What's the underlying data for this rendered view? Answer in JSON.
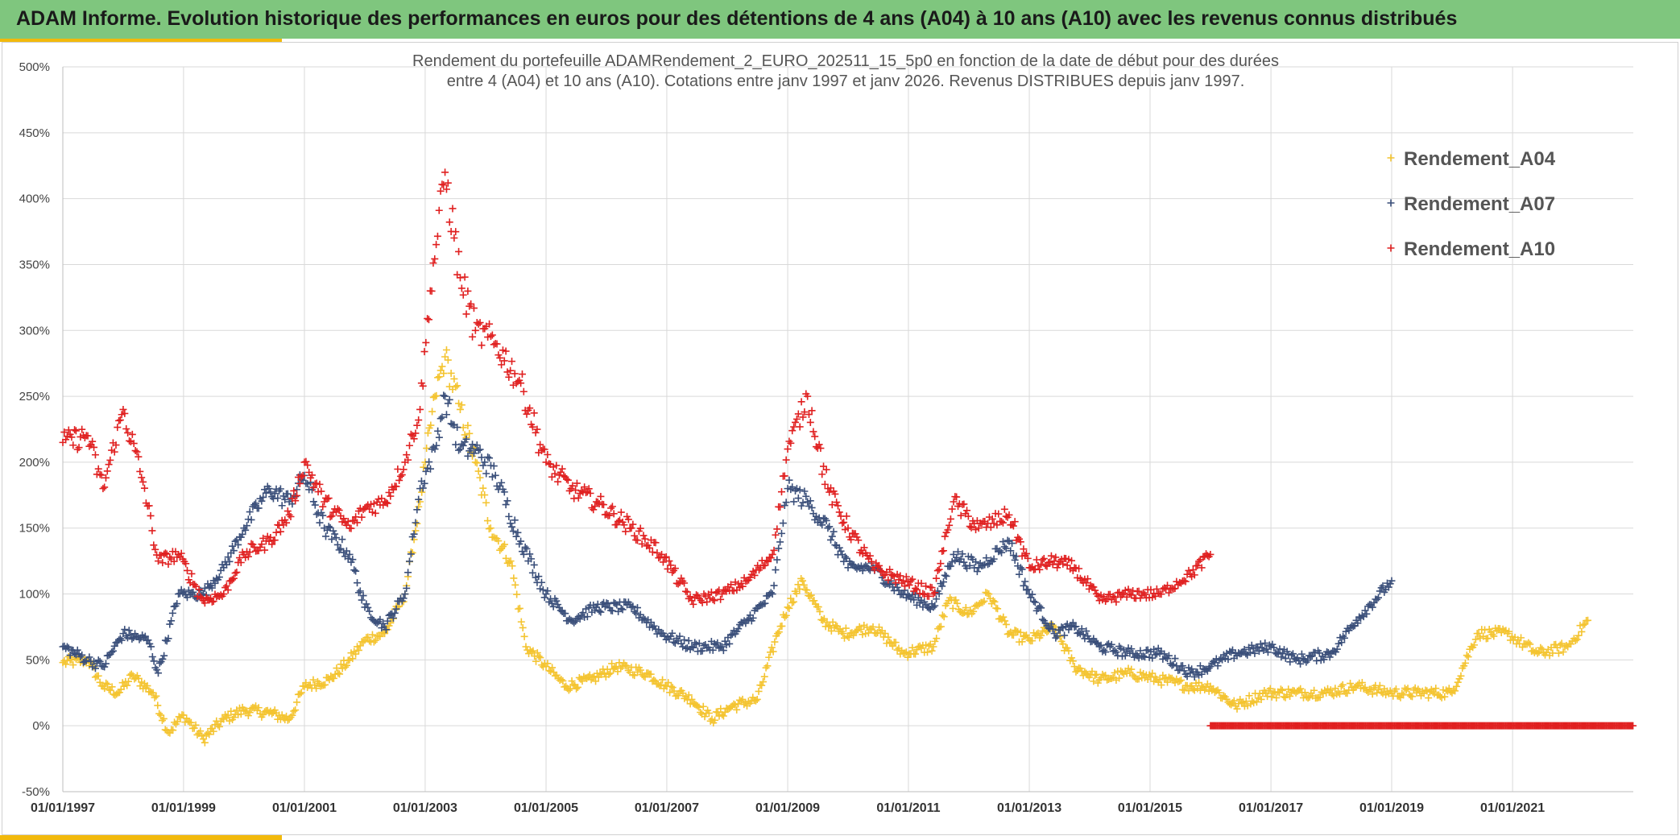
{
  "header": {
    "title": "ADAM Informe. Evolution historique des performances en euros pour des détentions de 4 ans (A04) à 10 ans (A10) avec les revenus connus distribués"
  },
  "colors": {
    "header_bg": "#7fc67e",
    "accent": "#f2b90c"
  },
  "chart_data": {
    "type": "scatter",
    "title_line1": "Rendement du portefeuille ADAMRendement_2_EURO_202511_15_5p0  en fonction de la date de début pour des durées",
    "title_line2": "entre 4 (A04) et 10 ans (A10). Cotations entre janv 1997 et janv 2026. Revenus DISTRIBUES depuis janv 1997.",
    "xlim": [
      "1997-01-01",
      "2023-01-01"
    ],
    "ylim": [
      -50,
      500
    ],
    "y_ticks": [
      -50,
      0,
      50,
      100,
      150,
      200,
      250,
      300,
      350,
      400,
      450,
      500
    ],
    "y_tick_labels": [
      "-50%",
      "0%",
      "50%",
      "100%",
      "150%",
      "200%",
      "250%",
      "300%",
      "350%",
      "400%",
      "450%",
      "500%"
    ],
    "x_ticks": [
      "01/01/1997",
      "01/01/1999",
      "01/01/2001",
      "01/01/2003",
      "01/01/2005",
      "01/01/2007",
      "01/01/2009",
      "01/01/2011",
      "01/01/2013",
      "01/01/2015",
      "01/01/2017",
      "01/01/2019",
      "01/01/2021"
    ],
    "x_tick_dates": [
      "1997-01-01",
      "1999-01-01",
      "2001-01-01",
      "2003-01-01",
      "2005-01-01",
      "2007-01-01",
      "2009-01-01",
      "2011-01-01",
      "2013-01-01",
      "2015-01-01",
      "2017-01-01",
      "2019-01-01",
      "2021-01-01"
    ],
    "grid": true,
    "marker": "+",
    "legend_position": "top-right",
    "series": [
      {
        "name": "Rendement_A04",
        "color": "#f4c430",
        "points": [
          [
            "1997-01-01",
            48
          ],
          [
            "1997-06-01",
            50
          ],
          [
            "1997-09-01",
            30
          ],
          [
            "1997-12-01",
            25
          ],
          [
            "1998-03-01",
            38
          ],
          [
            "1998-07-01",
            25
          ],
          [
            "1998-10-01",
            -5
          ],
          [
            "1999-01-01",
            8
          ],
          [
            "1999-05-01",
            -10
          ],
          [
            "1999-09-01",
            5
          ],
          [
            "2000-01-01",
            12
          ],
          [
            "2000-06-01",
            10
          ],
          [
            "2000-10-01",
            5
          ],
          [
            "2001-01-01",
            30
          ],
          [
            "2001-06-01",
            35
          ],
          [
            "2001-10-01",
            50
          ],
          [
            "2002-01-01",
            65
          ],
          [
            "2002-05-01",
            70
          ],
          [
            "2002-09-01",
            100
          ],
          [
            "2002-12-01",
            170
          ],
          [
            "2003-01-01",
            200
          ],
          [
            "2003-03-01",
            250
          ],
          [
            "2003-05-01",
            280
          ],
          [
            "2003-08-01",
            240
          ],
          [
            "2003-11-01",
            200
          ],
          [
            "2004-02-01",
            150
          ],
          [
            "2004-06-01",
            125
          ],
          [
            "2004-09-01",
            60
          ],
          [
            "2005-01-01",
            45
          ],
          [
            "2005-05-01",
            30
          ],
          [
            "2005-10-01",
            35
          ],
          [
            "2006-03-01",
            45
          ],
          [
            "2006-09-01",
            40
          ],
          [
            "2007-01-01",
            30
          ],
          [
            "2007-06-01",
            20
          ],
          [
            "2007-10-01",
            5
          ],
          [
            "2008-02-01",
            15
          ],
          [
            "2008-07-01",
            20
          ],
          [
            "2008-11-01",
            70
          ],
          [
            "2009-01-01",
            90
          ],
          [
            "2009-04-01",
            110
          ],
          [
            "2009-08-01",
            80
          ],
          [
            "2009-12-01",
            70
          ],
          [
            "2010-06-01",
            75
          ],
          [
            "2010-12-01",
            55
          ],
          [
            "2011-06-01",
            60
          ],
          [
            "2011-09-01",
            95
          ],
          [
            "2012-01-01",
            85
          ],
          [
            "2012-05-01",
            100
          ],
          [
            "2012-09-01",
            70
          ],
          [
            "2013-01-01",
            65
          ],
          [
            "2013-06-01",
            75
          ],
          [
            "2013-10-01",
            45
          ],
          [
            "2014-03-01",
            35
          ],
          [
            "2014-09-01",
            40
          ],
          [
            "2015-03-01",
            35
          ],
          [
            "2015-09-01",
            30
          ],
          [
            "2016-01-01",
            30
          ],
          [
            "2016-06-01",
            15
          ],
          [
            "2016-12-01",
            25
          ],
          [
            "2017-06-01",
            25
          ],
          [
            "2017-12-01",
            25
          ],
          [
            "2018-06-01",
            30
          ],
          [
            "2019-01-01",
            25
          ],
          [
            "2019-06-01",
            25
          ],
          [
            "2020-01-01",
            25
          ],
          [
            "2020-06-01",
            70
          ],
          [
            "2020-12-01",
            70
          ],
          [
            "2021-06-01",
            55
          ],
          [
            "2021-12-01",
            60
          ],
          [
            "2022-04-01",
            80
          ]
        ]
      },
      {
        "name": "Rendement_A07",
        "color": "#3a4f7a",
        "points": [
          [
            "1997-01-01",
            60
          ],
          [
            "1997-06-01",
            50
          ],
          [
            "1997-09-01",
            45
          ],
          [
            "1998-01-01",
            70
          ],
          [
            "1998-06-01",
            65
          ],
          [
            "1998-08-01",
            40
          ],
          [
            "1998-12-01",
            100
          ],
          [
            "1999-05-01",
            100
          ],
          [
            "1999-09-01",
            120
          ],
          [
            "2000-01-01",
            150
          ],
          [
            "2000-06-01",
            180
          ],
          [
            "2000-10-01",
            170
          ],
          [
            "2001-01-01",
            190
          ],
          [
            "2001-05-01",
            150
          ],
          [
            "2001-10-01",
            130
          ],
          [
            "2002-01-01",
            90
          ],
          [
            "2002-05-01",
            75
          ],
          [
            "2002-09-01",
            100
          ],
          [
            "2002-12-01",
            180
          ],
          [
            "2003-03-01",
            210
          ],
          [
            "2003-05-01",
            250
          ],
          [
            "2003-08-01",
            210
          ],
          [
            "2003-11-01",
            210
          ],
          [
            "2004-03-01",
            190
          ],
          [
            "2004-08-01",
            140
          ],
          [
            "2005-01-01",
            100
          ],
          [
            "2005-06-01",
            80
          ],
          [
            "2005-11-01",
            90
          ],
          [
            "2006-06-01",
            90
          ],
          [
            "2006-12-01",
            70
          ],
          [
            "2007-06-01",
            60
          ],
          [
            "2007-12-01",
            60
          ],
          [
            "2008-05-01",
            80
          ],
          [
            "2008-10-01",
            100
          ],
          [
            "2009-01-01",
            180
          ],
          [
            "2009-05-01",
            170
          ],
          [
            "2009-09-01",
            150
          ],
          [
            "2010-01-01",
            120
          ],
          [
            "2010-06-01",
            120
          ],
          [
            "2010-12-01",
            100
          ],
          [
            "2011-06-01",
            90
          ],
          [
            "2011-10-01",
            130
          ],
          [
            "2012-03-01",
            120
          ],
          [
            "2012-09-01",
            140
          ],
          [
            "2013-01-01",
            100
          ],
          [
            "2013-06-01",
            70
          ],
          [
            "2013-10-01",
            75
          ],
          [
            "2014-03-01",
            60
          ],
          [
            "2014-09-01",
            55
          ],
          [
            "2015-03-01",
            55
          ],
          [
            "2015-09-01",
            40
          ],
          [
            "2016-01-01",
            45
          ],
          [
            "2016-06-01",
            55
          ],
          [
            "2017-01-01",
            60
          ],
          [
            "2017-06-01",
            50
          ],
          [
            "2018-01-01",
            55
          ],
          [
            "2018-06-01",
            80
          ],
          [
            "2019-01-01",
            110
          ]
        ]
      },
      {
        "name": "Rendement_A10",
        "color": "#e02020",
        "points": [
          [
            "1997-01-01",
            215
          ],
          [
            "1997-06-01",
            220
          ],
          [
            "1997-09-01",
            180
          ],
          [
            "1998-01-01",
            240
          ],
          [
            "1998-05-01",
            185
          ],
          [
            "1998-08-01",
            125
          ],
          [
            "1998-12-01",
            130
          ],
          [
            "1999-05-01",
            95
          ],
          [
            "1999-09-01",
            100
          ],
          [
            "2000-01-01",
            130
          ],
          [
            "2000-06-01",
            140
          ],
          [
            "2000-10-01",
            160
          ],
          [
            "2001-01-01",
            200
          ],
          [
            "2001-05-01",
            170
          ],
          [
            "2001-10-01",
            150
          ],
          [
            "2002-01-01",
            165
          ],
          [
            "2002-05-01",
            170
          ],
          [
            "2002-09-01",
            200
          ],
          [
            "2002-12-01",
            240
          ],
          [
            "2003-02-01",
            330
          ],
          [
            "2003-05-01",
            420
          ],
          [
            "2003-08-01",
            340
          ],
          [
            "2003-11-01",
            300
          ],
          [
            "2004-03-01",
            290
          ],
          [
            "2004-08-01",
            260
          ],
          [
            "2005-01-01",
            200
          ],
          [
            "2005-06-01",
            180
          ],
          [
            "2005-11-01",
            170
          ],
          [
            "2006-06-01",
            150
          ],
          [
            "2006-12-01",
            130
          ],
          [
            "2007-06-01",
            95
          ],
          [
            "2007-12-01",
            100
          ],
          [
            "2008-05-01",
            110
          ],
          [
            "2008-10-01",
            130
          ],
          [
            "2009-01-01",
            210
          ],
          [
            "2009-05-01",
            250
          ],
          [
            "2009-09-01",
            180
          ],
          [
            "2010-01-01",
            150
          ],
          [
            "2010-06-01",
            120
          ],
          [
            "2010-12-01",
            110
          ],
          [
            "2011-06-01",
            100
          ],
          [
            "2011-10-01",
            170
          ],
          [
            "2012-03-01",
            150
          ],
          [
            "2012-09-01",
            160
          ],
          [
            "2013-01-01",
            120
          ],
          [
            "2013-06-01",
            125
          ],
          [
            "2013-10-01",
            120
          ],
          [
            "2014-03-01",
            95
          ],
          [
            "2014-09-01",
            100
          ],
          [
            "2015-03-01",
            100
          ],
          [
            "2015-09-01",
            115
          ],
          [
            "2016-01-01",
            130
          ]
        ]
      }
    ],
    "zero_segment": {
      "color": "#e02020",
      "from": "2016-01-01",
      "to": "2022-12-31",
      "value": 0
    }
  }
}
